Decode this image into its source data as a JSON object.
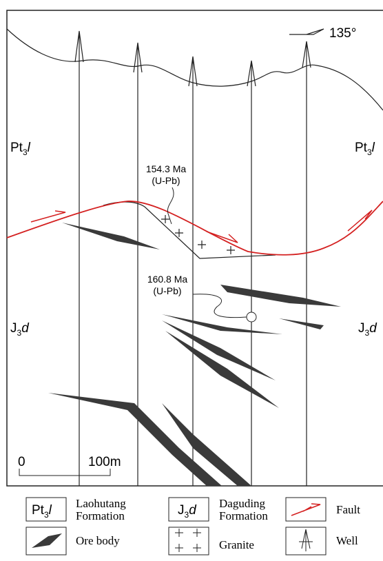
{
  "strike": "135°",
  "formations": [
    {
      "symbol": {
        "main": "Pt",
        "sub": "3",
        "italic": "l"
      },
      "name": [
        "Laohutang",
        "Formation"
      ]
    },
    {
      "symbol": {
        "main": "J",
        "sub": "3",
        "italic": "d"
      },
      "name": [
        "Daguding",
        "Formation"
      ]
    }
  ],
  "dates": [
    {
      "age": "154.3 Ma",
      "method": "(U-Pb)"
    },
    {
      "age": "160.8 Ma",
      "method": "(U-Pb)"
    }
  ],
  "scale": {
    "start": "0",
    "end": "100m"
  },
  "legend": {
    "fault": "Fault",
    "ore": "Ore body",
    "granite": "Granite",
    "well": "Well"
  }
}
